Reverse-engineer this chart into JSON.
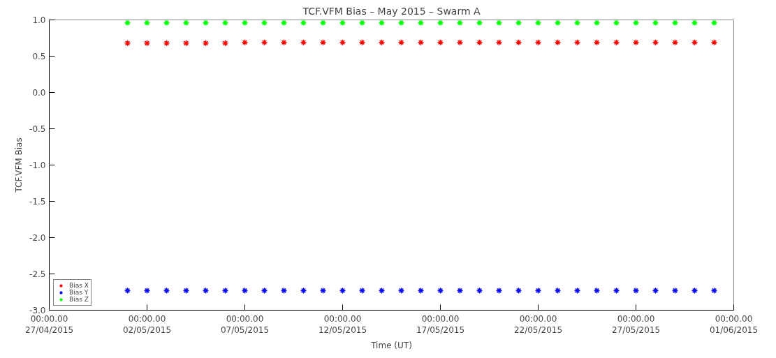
{
  "chart_data": {
    "type": "scatter",
    "title": "TCF.VFM Bias – May 2015 – Swarm A",
    "xlabel": "Time (UT)",
    "ylabel": "TCF.VFM Bias",
    "x": [
      "2015-05-01",
      "2015-05-02",
      "2015-05-03",
      "2015-05-04",
      "2015-05-05",
      "2015-05-06",
      "2015-05-07",
      "2015-05-08",
      "2015-05-09",
      "2015-05-10",
      "2015-05-11",
      "2015-05-12",
      "2015-05-13",
      "2015-05-14",
      "2015-05-15",
      "2015-05-16",
      "2015-05-17",
      "2015-05-18",
      "2015-05-19",
      "2015-05-20",
      "2015-05-21",
      "2015-05-22",
      "2015-05-23",
      "2015-05-24",
      "2015-05-25",
      "2015-05-26",
      "2015-05-27",
      "2015-05-28",
      "2015-05-29",
      "2015-05-30",
      "2015-05-31"
    ],
    "series": [
      {
        "name": "Bias X",
        "color": "#ff0000",
        "values": [
          0.68,
          0.68,
          0.68,
          0.68,
          0.68,
          0.68,
          0.69,
          0.69,
          0.69,
          0.69,
          0.69,
          0.69,
          0.69,
          0.69,
          0.69,
          0.69,
          0.69,
          0.69,
          0.69,
          0.69,
          0.69,
          0.69,
          0.69,
          0.69,
          0.69,
          0.69,
          0.69,
          0.69,
          0.69,
          0.69,
          0.69
        ]
      },
      {
        "name": "Bias Y",
        "color": "#0000ff",
        "values": [
          -2.73,
          -2.73,
          -2.73,
          -2.73,
          -2.73,
          -2.73,
          -2.73,
          -2.73,
          -2.73,
          -2.73,
          -2.73,
          -2.73,
          -2.73,
          -2.73,
          -2.73,
          -2.73,
          -2.73,
          -2.73,
          -2.73,
          -2.73,
          -2.73,
          -2.73,
          -2.73,
          -2.73,
          -2.73,
          -2.73,
          -2.73,
          -2.73,
          -2.73,
          -2.73,
          -2.73
        ]
      },
      {
        "name": "Bias Z",
        "color": "#00ff00",
        "values": [
          0.96,
          0.96,
          0.96,
          0.96,
          0.96,
          0.96,
          0.96,
          0.96,
          0.96,
          0.96,
          0.96,
          0.96,
          0.96,
          0.96,
          0.96,
          0.96,
          0.96,
          0.96,
          0.96,
          0.96,
          0.96,
          0.96,
          0.96,
          0.96,
          0.96,
          0.96,
          0.96,
          0.96,
          0.96,
          0.96,
          0.96
        ]
      }
    ],
    "xlim": [
      "2015-04-27",
      "2015-06-01"
    ],
    "xticks": [
      {
        "value": "2015-04-27",
        "label": "00:00.00\n27/04/2015"
      },
      {
        "value": "2015-05-02",
        "label": "00:00.00\n02/05/2015"
      },
      {
        "value": "2015-05-07",
        "label": "00:00.00\n07/05/2015"
      },
      {
        "value": "2015-05-12",
        "label": "00:00.00\n12/05/2015"
      },
      {
        "value": "2015-05-17",
        "label": "00:00.00\n17/05/2015"
      },
      {
        "value": "2015-05-22",
        "label": "00:00.00\n22/05/2015"
      },
      {
        "value": "2015-05-27",
        "label": "00:00.00\n27/05/2015"
      },
      {
        "value": "2015-06-01",
        "label": "00:00.00\n01/06/2015"
      }
    ],
    "ylim": [
      -3.0,
      1.0
    ],
    "yticks": [
      {
        "value": -3.0,
        "label": "-3.0"
      },
      {
        "value": -2.5,
        "label": "-2.5"
      },
      {
        "value": -2.0,
        "label": "-2.0"
      },
      {
        "value": -1.5,
        "label": "-1.5"
      },
      {
        "value": -1.0,
        "label": "-1.0"
      },
      {
        "value": -0.5,
        "label": "-0.5"
      },
      {
        "value": 0.0,
        "label": "0.0"
      },
      {
        "value": 0.5,
        "label": "0.5"
      },
      {
        "value": 1.0,
        "label": "1.0"
      }
    ],
    "grid": false,
    "legend": "bottom left",
    "marker": "cross"
  }
}
